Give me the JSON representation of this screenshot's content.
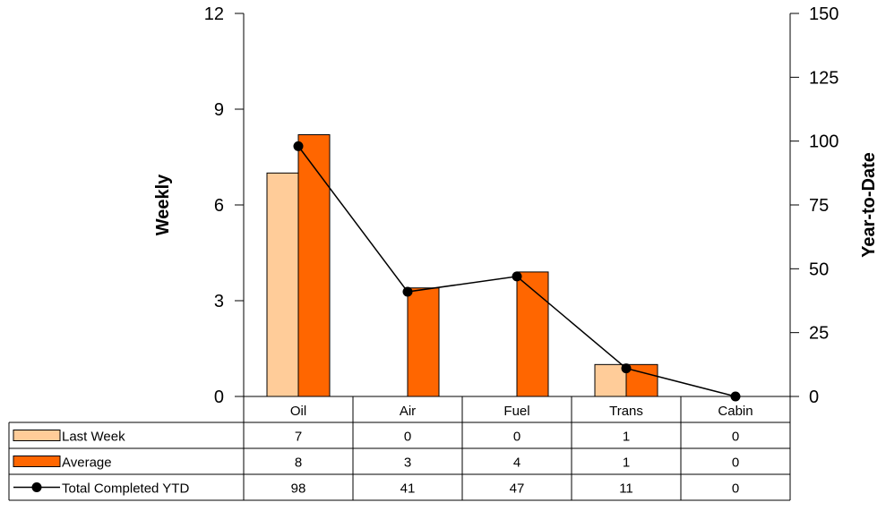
{
  "chart_data": {
    "type": "bar",
    "categories": [
      "Oil",
      "Air",
      "Fuel",
      "Trans",
      "Cabin"
    ],
    "series": [
      {
        "name": "Last Week",
        "kind": "bar",
        "axis": "left",
        "values": [
          7,
          0,
          0,
          1,
          0
        ],
        "color": "#FFCC99"
      },
      {
        "name": "Average",
        "kind": "bar",
        "axis": "left",
        "values": [
          8.2,
          3.4,
          3.9,
          1.0,
          0
        ],
        "table_values": [
          8,
          3,
          4,
          1,
          0
        ],
        "color": "#FF6600"
      },
      {
        "name": "Total Completed YTD",
        "kind": "line",
        "axis": "right",
        "values": [
          98,
          41,
          47,
          11,
          0
        ],
        "color": "#000000"
      }
    ],
    "ylabel": "Weekly",
    "y2label": "Year-to-Date",
    "ylim": [
      0,
      12
    ],
    "y2lim": [
      0,
      150
    ],
    "yticks": [
      "0",
      "3",
      "6",
      "9",
      "12"
    ],
    "y2ticks": [
      "0",
      "25",
      "50",
      "75",
      "100",
      "125",
      "150"
    ],
    "data_table": true,
    "grid": false
  }
}
